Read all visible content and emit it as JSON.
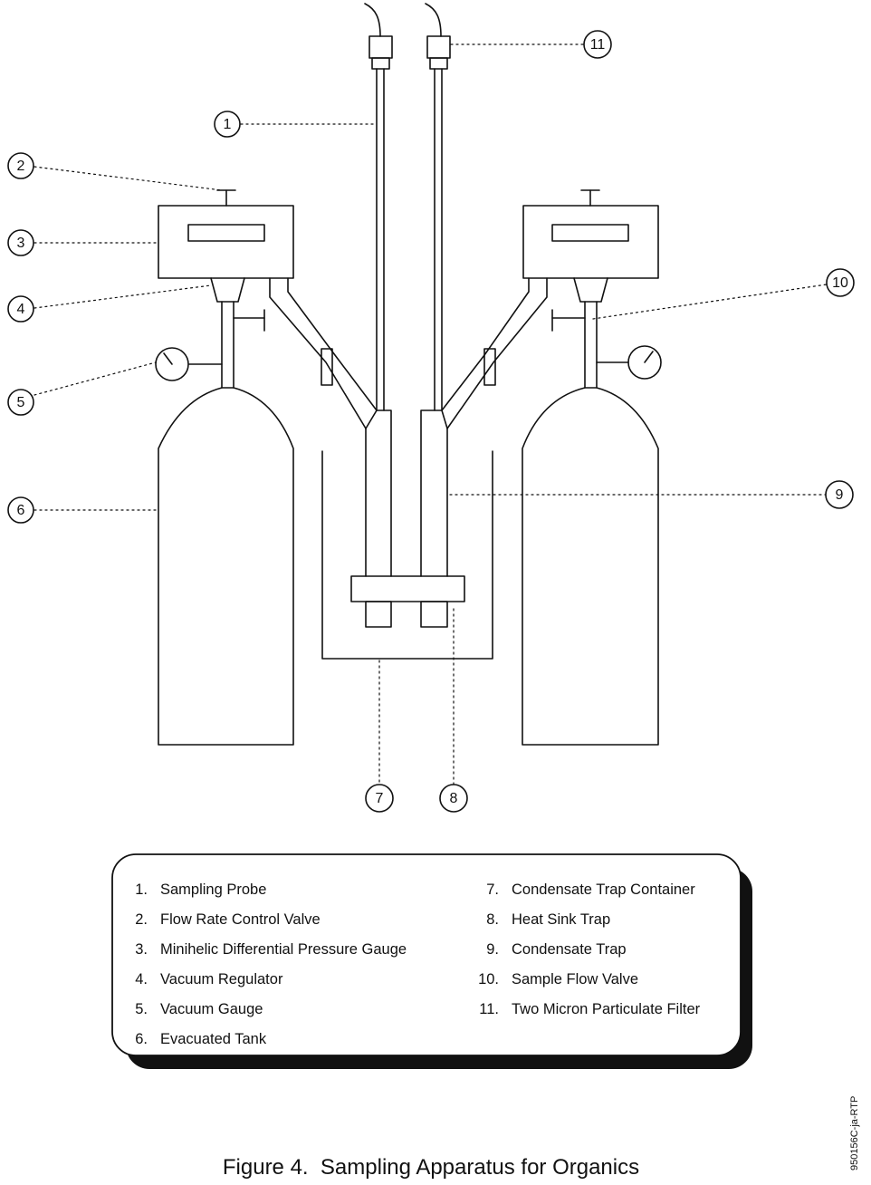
{
  "callouts": [
    "1",
    "2",
    "3",
    "4",
    "5",
    "6",
    "7",
    "8",
    "9",
    "10",
    "11"
  ],
  "legend": {
    "left": [
      {
        "num": "1.",
        "text": "Sampling Probe"
      },
      {
        "num": "2.",
        "text": "Flow Rate Control Valve"
      },
      {
        "num": "3.",
        "text": "Minihelic Differential Pressure Gauge"
      },
      {
        "num": "4.",
        "text": "Vacuum Regulator"
      },
      {
        "num": "5.",
        "text": "Vacuum Gauge"
      },
      {
        "num": "6.",
        "text": "Evacuated Tank"
      }
    ],
    "right": [
      {
        "num": "7.",
        "text": "Condensate Trap Container"
      },
      {
        "num": "8.",
        "text": "Heat Sink Trap"
      },
      {
        "num": "9.",
        "text": "Condensate Trap"
      },
      {
        "num": "10.",
        "text": "Sample Flow Valve"
      },
      {
        "num": "11.",
        "text": "Two Micron Particulate Filter"
      }
    ]
  },
  "caption": "Figure 4.  Sampling Apparatus for Organics",
  "doc_code": "950156C-ja-RTP"
}
